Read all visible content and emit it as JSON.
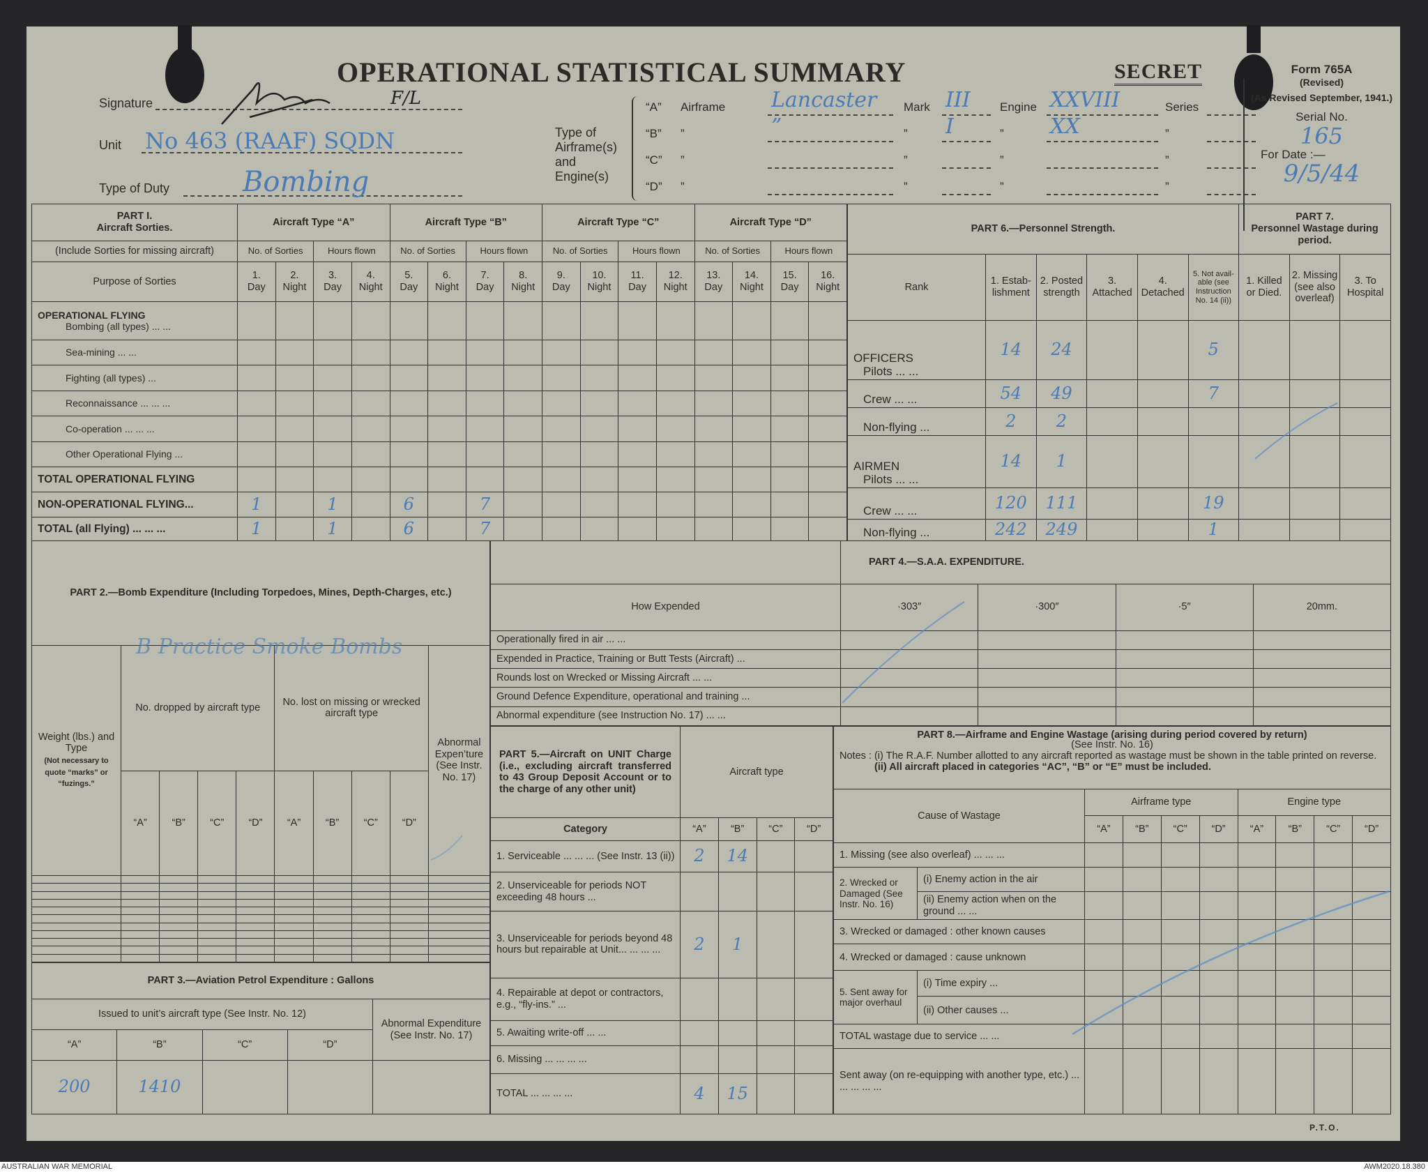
{
  "header": {
    "title": "OPERATIONAL  STATISTICAL  SUMMARY",
    "secret": "SECRET",
    "signature_label": "Signature",
    "signature_rank": "F/L",
    "unit_label": "Unit",
    "unit": "No 463 (RAAF) SQDN",
    "duty_label": "Type of Duty",
    "duty": "Bombing",
    "type_label": "Type of Airframe(s) and Engine(s)",
    "airframes": [
      {
        "key": "“A”",
        "airframe_label": "Airframe",
        "airframe": "Lancaster",
        "mark_label": "Mark",
        "mark": "III",
        "engine_label": "Engine",
        "engine": "XXVIII",
        "series_label": "Series",
        "series": ""
      },
      {
        "key": "“B”",
        "airframe_label": "”",
        "airframe": "”",
        "mark_label": "”",
        "mark": "I",
        "engine_label": "”",
        "engine": "XX",
        "series_label": "”",
        "series": ""
      },
      {
        "key": "“C”",
        "airframe_label": "”",
        "airframe": "",
        "mark_label": "”",
        "mark": "",
        "engine_label": "”",
        "engine": "",
        "series_label": "”",
        "series": ""
      },
      {
        "key": "“D”",
        "airframe_label": "”",
        "airframe": "",
        "mark_label": "”",
        "mark": "",
        "engine_label": "”",
        "engine": "",
        "series_label": "”",
        "series": ""
      }
    ],
    "form": "Form 765A",
    "revised": "(Revised)",
    "revised_date": "(As Revised September, 1941.)",
    "serial_label": "Serial No.",
    "serial": "165",
    "date_label": "For Date :—",
    "date": "9/5/44"
  },
  "part1": {
    "title": "PART I.",
    "subtitle": "Aircraft Sorties.",
    "note": "(Include Sorties for missing aircraft)",
    "purpose": "Purpose of Sorties",
    "types": [
      "Aircraft Type “A”",
      "Aircraft Type “B”",
      "Aircraft Type “C”",
      "Aircraft Type “D”"
    ],
    "sub": [
      "No. of Sorties",
      "Hours flown"
    ],
    "cols": [
      "1. Day",
      "2. Night",
      "3. Day",
      "4. Night",
      "5. Day",
      "6. Night",
      "7. Day",
      "8. Night",
      "9. Day",
      "10. Night",
      "11. Day",
      "12. Night",
      "13. Day",
      "14. Night",
      "15. Day",
      "16. Night"
    ],
    "rows": [
      {
        "heading": "OPERATIONAL FLYING",
        "label": "Bombing (all types)   ...   ...",
        "values": []
      },
      {
        "label": "Sea-mining   ...   ...",
        "values": []
      },
      {
        "label": "Fighting (all types)   ...",
        "values": []
      },
      {
        "label": "Reconnaissance ...   ...   ...",
        "values": []
      },
      {
        "label": "Co-operation   ...   ...   ...",
        "values": []
      },
      {
        "label": "Other Operational Flying   ...",
        "values": []
      },
      {
        "label": "TOTAL OPERATIONAL FLYING",
        "bold": true,
        "values": []
      },
      {
        "label": "NON-OPERATIONAL FLYING...",
        "bold": true,
        "values": [
          "1",
          "",
          "1",
          "",
          "6",
          "",
          "7",
          "",
          "",
          "",
          "",
          "",
          "",
          "",
          "",
          ""
        ]
      },
      {
        "label": "TOTAL (all Flying) ...   ...   ...",
        "bold": true,
        "values": [
          "1",
          "",
          "1",
          "",
          "6",
          "",
          "7",
          "",
          "",
          "",
          "",
          "",
          "",
          "",
          "",
          ""
        ]
      }
    ]
  },
  "part6": {
    "title": "PART 6.—Personnel Strength.",
    "rank": "Rank",
    "cols": [
      "1. Estab-lishment",
      "2. Posted strength",
      "3. Attached",
      "4. Detached",
      "5. Not avail-able (see Instruction No. 14 (ii))"
    ],
    "rows": [
      {
        "heading": "OFFICERS",
        "label": "Pilots   ...   ...",
        "values": [
          "14",
          "24",
          "",
          "",
          "5"
        ]
      },
      {
        "label": "Crew   ...   ...",
        "values": [
          "54",
          "49",
          "",
          "",
          "7"
        ]
      },
      {
        "label": "Non-flying   ...",
        "values": [
          "2",
          "2",
          "",
          "",
          ""
        ]
      },
      {
        "heading": "AIRMEN",
        "label": "Pilots   ...   ...",
        "values": [
          "14",
          "1",
          "",
          "",
          ""
        ]
      },
      {
        "label": "Crew   ...   ...",
        "values": [
          "120",
          "111",
          "",
          "",
          "19"
        ]
      },
      {
        "label": "Non-flying   ...",
        "values": [
          "242",
          "249",
          "",
          "",
          "1"
        ]
      }
    ]
  },
  "part7": {
    "title": "PART 7.",
    "subtitle": "Personnel Wastage during period.",
    "cols": [
      "1. Killed or Died.",
      "2. Missing (see also overleaf)",
      "3. To Hospital"
    ]
  },
  "part2": {
    "title": "PART 2.—Bomb Expenditure (Including Torpedoes, Mines, Depth-Charges, etc.)",
    "weight": "Weight (lbs.) and Type",
    "weight_note": "(Not necessary to quote “marks” or “fuzings.”",
    "dropped": "No. dropped by aircraft type",
    "lost": "No. lost on missing or wrecked aircraft type",
    "abnormal": "Abnormal Expen’ture (See Instr. No. 17)",
    "types": [
      "“A”",
      "“B”",
      "“C”",
      "“D”"
    ],
    "entry": "B Practice Smoke Bombs"
  },
  "part3": {
    "title": "PART 3.—Aviation Petrol Expenditure :  Gallons",
    "issued": "Issued to unit’s aircraft type (See Instr. No. 12)",
    "abnormal": "Abnormal Expenditure (See Instr. No. 17)",
    "types": [
      "“A”",
      "“B”",
      "“C”",
      "“D”"
    ],
    "values": [
      "200",
      "1410",
      "",
      ""
    ]
  },
  "part4": {
    "title": "PART 4.—S.A.A.  EXPENDITURE.",
    "how": "How Expended",
    "cols": [
      "·303″",
      "·300″",
      "·5″",
      "20mm."
    ],
    "rows": [
      "Operationally fired in air   ...   ...",
      "Expended in Practice, Training or Butt Tests (Aircraft)   ...",
      "Rounds lost on Wrecked or Missing Aircraft   ...   ...",
      "Ground Defence Expenditure, operational and training   ...",
      "Abnormal expenditure (see Instruction No. 17)   ...   ..."
    ]
  },
  "part5": {
    "title": "PART 5.—Aircraft on UNIT Charge (i.e., excluding aircraft transferred to 43 Group Deposit Account or to the charge of any other unit)",
    "aircraft_type": "Aircraft type",
    "category": "Category",
    "types": [
      "“A”",
      "“B”",
      "“C”",
      "“D”"
    ],
    "rows": [
      {
        "label": "1. Serviceable   ...   ...   ... (See Instr. 13 (ii))",
        "values": [
          "2",
          "14",
          "",
          ""
        ]
      },
      {
        "label": "2. Unserviceable for periods NOT exceeding 48 hours   ...",
        "values": [
          "",
          "",
          "",
          ""
        ]
      },
      {
        "label": "3. Unserviceable for periods beyond 48 hours but repairable at Unit...   ...   ...   ...",
        "values": [
          "2",
          "1",
          "",
          ""
        ]
      },
      {
        "label": "4. Repairable at depot or contractors, e.g., “fly-ins.”   ...",
        "values": [
          "",
          "",
          "",
          ""
        ]
      },
      {
        "label": "5. Awaiting write-off   ...   ...",
        "values": [
          "",
          "",
          "",
          ""
        ]
      },
      {
        "label": "6. Missing ...   ...   ...   ...",
        "values": [
          "",
          "",
          "",
          ""
        ]
      },
      {
        "label": "TOTAL   ...   ...   ...   ...",
        "values": [
          "4",
          "15",
          "",
          ""
        ]
      }
    ]
  },
  "part8": {
    "title": "PART 8.—Airframe and Engine Wastage (arising during period covered by return)",
    "instr": "(See Instr. No. 16)",
    "note1": "Notes : (i) The R.A.F. Number allotted to any aircraft reported as wastage must be shown in the table printed on reverse.",
    "note2": "(ii) All aircraft placed in categories “AC”, “B” or “E” must be included.",
    "cause": "Cause of Wastage",
    "airframe": "Airframe type",
    "engine": "Engine type",
    "types": [
      "“A”",
      "“B”",
      "“C”",
      "“D”"
    ],
    "rows": [
      {
        "main": "1. Missing (see also overleaf) ...   ...   ...",
        "span": 1,
        "full": true
      },
      {
        "main": "2. Wrecked or Damaged (See Instr. No. 16)",
        "span": 2,
        "sub": "(i) Enemy action in the air"
      },
      {
        "sub": "(ii) Enemy action when on the ground   ...   ..."
      },
      {
        "main": "3. Wrecked or damaged : other known causes",
        "span": 1,
        "full": true
      },
      {
        "main": "4. Wrecked or damaged :  cause unknown",
        "span": 1,
        "full": true
      },
      {
        "main": "5. Sent away for major overhaul",
        "span": 2,
        "sub": "(i) Time expiry   ..."
      },
      {
        "sub": "(ii) Other causes   ..."
      },
      {
        "main": "TOTAL wastage due to service   ...   ...",
        "span": 1,
        "full": true
      },
      {
        "main": "Sent away (on re-equipping with another type, etc.) ...   ...   ...   ...   ...",
        "span": 1,
        "full": true
      }
    ]
  },
  "pto": "P.T.O.",
  "footer": {
    "left": "AUSTRALIAN WAR MEMORIAL",
    "right": "AWM2020.18.380"
  },
  "colors": {
    "ink": "#2b2a26",
    "pen": "#4a7bb4",
    "paper": "#bcbbb0"
  }
}
